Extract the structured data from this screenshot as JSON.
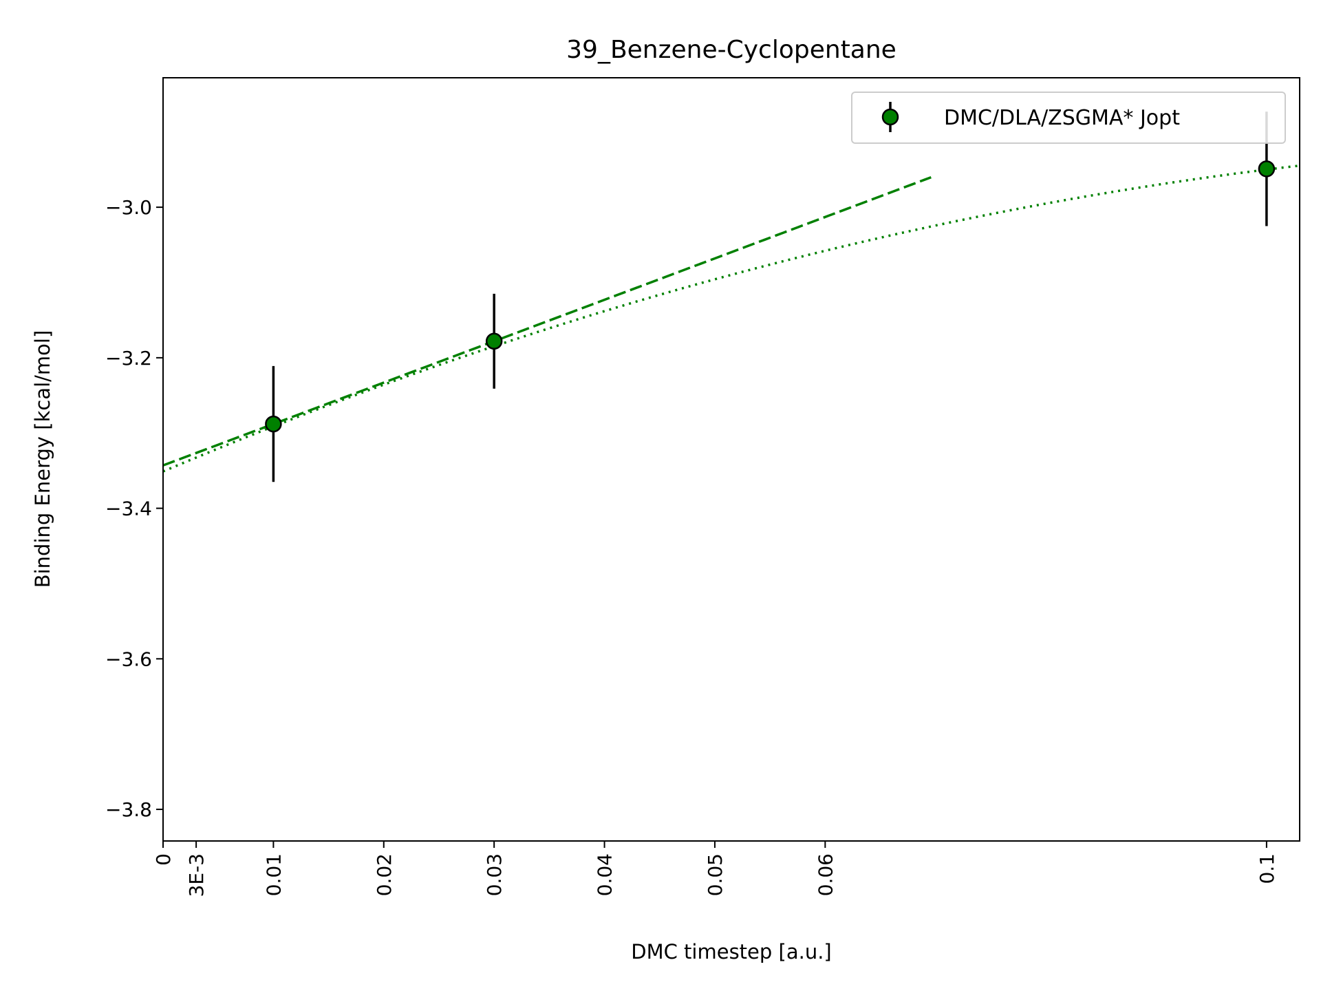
{
  "chart_data": {
    "type": "scatter",
    "title": "39_Benzene-Cyclopentane",
    "xlabel": "DMC timestep [a.u.]",
    "ylabel": "Binding Energy [kcal/mol]",
    "xlim": [
      0,
      0.103
    ],
    "ylim": [
      -3.842,
      -2.828
    ],
    "xticks": [
      {
        "value": 0,
        "label": "0"
      },
      {
        "value": 0.003,
        "label": "3E-3"
      },
      {
        "value": 0.01,
        "label": "0.01"
      },
      {
        "value": 0.02,
        "label": "0.02"
      },
      {
        "value": 0.03,
        "label": "0.03"
      },
      {
        "value": 0.04,
        "label": "0.04"
      },
      {
        "value": 0.05,
        "label": "0.05"
      },
      {
        "value": 0.06,
        "label": "0.06"
      },
      {
        "value": 0.1,
        "label": "0.1"
      }
    ],
    "yticks": [
      {
        "value": -3.0,
        "label": "−3.0"
      },
      {
        "value": -3.2,
        "label": "−3.2"
      },
      {
        "value": -3.4,
        "label": "−3.4"
      },
      {
        "value": -3.6,
        "label": "−3.6"
      },
      {
        "value": -3.8,
        "label": "−3.8"
      }
    ],
    "grid": false,
    "legend_position": "top-right",
    "series": [
      {
        "name": "DMC/DLA/ZSGMA* Jopt",
        "color": "#008000",
        "marker": "circle",
        "x": [
          0.01,
          0.03,
          0.1
        ],
        "y": [
          -3.288,
          -3.178,
          -2.949
        ],
        "yerr": [
          0.077,
          0.063,
          0.076
        ]
      }
    ],
    "fits": [
      {
        "style": "dashed",
        "color": "#008000",
        "kind": "linear",
        "intercept": -3.343,
        "slope": 5.5,
        "x_range": [
          0,
          0.0696
        ]
      },
      {
        "style": "dotted",
        "color": "#008000",
        "kind": "quadratic",
        "c0": -3.351,
        "c1": 6.2,
        "c2": -21.9,
        "x_range": [
          0,
          0.103
        ]
      }
    ]
  }
}
